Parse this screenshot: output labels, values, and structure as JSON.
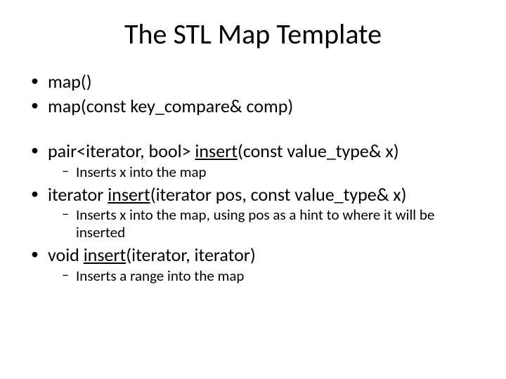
{
  "title": "The STL Map Template",
  "items": [
    {
      "pre": "map()"
    },
    {
      "pre": "map(const key_compare& comp)"
    },
    {
      "pre": "pair<iterator, bool> ",
      "u": "insert",
      "post": "(const value_type& x)",
      "gap": true,
      "sub": [
        {
          "text": "Inserts x into the map"
        }
      ]
    },
    {
      "pre": "iterator ",
      "u": "insert",
      "post": "(iterator pos, const value_type& x)",
      "sub": [
        {
          "text": "Inserts x into the map, using pos as a hint to where it will be inserted"
        }
      ]
    },
    {
      "pre": "void ",
      "u": "insert",
      "post": "(iterator, iterator)",
      "sub": [
        {
          "text": "Inserts a range into the map"
        }
      ]
    }
  ],
  "colors": {
    "background": "#ffffff",
    "text": "#000000"
  },
  "fontsizes": {
    "title": 40,
    "bullet": 26,
    "sub": 21
  }
}
